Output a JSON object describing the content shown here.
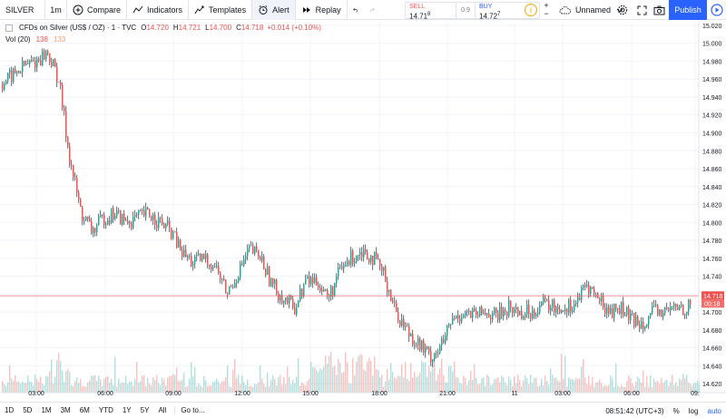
{
  "toolbar": {
    "symbol": "SILVER",
    "interval": "1m",
    "compare": "Compare",
    "indicators": "Indicators",
    "templates": "Templates",
    "alert": "Alert",
    "replay": "Replay",
    "sell_label": "SELL",
    "sell_value": "14.71",
    "sell_sup": "8",
    "spread": "0.9",
    "buy_label": "BUY",
    "buy_value": "14.72",
    "buy_sup": "7",
    "plus": "+",
    "minus": "−",
    "layout_name": "Unnamed",
    "publish": "Publish"
  },
  "legend": {
    "title": "CFDs on Silver (US$ / OZ) · 1 · TVC",
    "open_k": "O",
    "open_v": "14.720",
    "high_k": "H",
    "high_v": "14.721",
    "low_k": "L",
    "low_v": "14.700",
    "close_k": "C",
    "close_v": "14.718",
    "change": "+0.014 (+0.10%)",
    "vol_label": "Vol (20)",
    "vol_value": "138",
    "vol_ma": "133"
  },
  "price_axis": {
    "ticks": [
      "15.020",
      "15.000",
      "14.980",
      "14.960",
      "14.940",
      "14.920",
      "14.900",
      "14.880",
      "14.860",
      "14.840",
      "14.820",
      "14.800",
      "14.780",
      "14.760",
      "14.740",
      "14.720",
      "14.700",
      "14.680",
      "14.660",
      "14.640",
      "14.620"
    ],
    "last_price": "14.718",
    "countdown": "00:18"
  },
  "time_axis": {
    "ticks": [
      "03:00",
      "06:00",
      "09:00",
      "12:00",
      "15:00",
      "18:00",
      "21:00",
      "11",
      "03:00",
      "06:00",
      "09:"
    ]
  },
  "colors": {
    "up": "#26a69a",
    "down": "#ef5350",
    "accent": "#2962ff",
    "grid": "#f0f3fa"
  },
  "chart_data": {
    "type": "candlestick",
    "symbol": "SILVER",
    "x": [
      "02:00",
      "02:30",
      "03:00",
      "03:30",
      "04:00",
      "04:30",
      "05:00",
      "05:30",
      "06:00",
      "06:30",
      "07:00",
      "07:30",
      "08:00",
      "08:30",
      "09:00",
      "09:30",
      "10:00",
      "10:30",
      "11:00",
      "11:30",
      "12:00",
      "12:30",
      "13:00",
      "13:30",
      "14:00",
      "14:30",
      "15:00",
      "15:30",
      "16:00",
      "16:30",
      "17:00",
      "17:30",
      "18:00",
      "18:30",
      "19:00",
      "19:30",
      "20:00",
      "20:30",
      "21:00",
      "21:30",
      "22:00",
      "22:30",
      "23:00",
      "23:30",
      "00:00",
      "00:30",
      "01:00",
      "01:30",
      "02:00",
      "02:30",
      "03:00",
      "03:30",
      "04:00",
      "04:30",
      "05:00",
      "05:30",
      "06:00",
      "06:30",
      "07:00",
      "07:30",
      "08:00",
      "08:30",
      "09:00"
    ],
    "y": [
      14.955,
      14.965,
      14.975,
      14.98,
      14.99,
      14.96,
      14.87,
      14.81,
      14.79,
      14.805,
      14.81,
      14.8,
      14.805,
      14.81,
      14.8,
      14.79,
      14.765,
      14.755,
      14.76,
      14.75,
      14.72,
      14.745,
      14.77,
      14.76,
      14.73,
      14.715,
      14.705,
      14.735,
      14.735,
      14.715,
      14.745,
      14.76,
      14.77,
      14.76,
      14.74,
      14.7,
      14.68,
      14.665,
      14.65,
      14.66,
      14.69,
      14.7,
      14.695,
      14.7,
      14.695,
      14.705,
      14.7,
      14.7,
      14.71,
      14.705,
      14.705,
      14.71,
      14.73,
      14.715,
      14.7,
      14.705,
      14.69,
      14.69,
      14.7,
      14.7,
      14.705,
      14.705,
      14.718
    ],
    "ylim": [
      14.61,
      15.025
    ],
    "series": [
      {
        "name": "Vol (20)",
        "type": "volume"
      }
    ],
    "grid": true
  }
}
